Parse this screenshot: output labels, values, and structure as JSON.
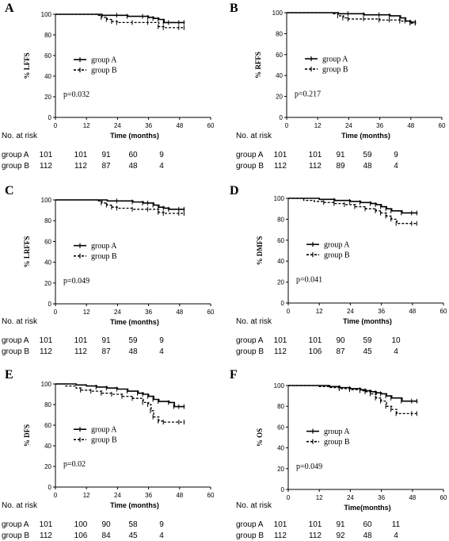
{
  "chart_data": [
    {
      "type": "line",
      "panel_label": "A",
      "ylabel": "% LFFS",
      "xlabel": "Time (months)",
      "xlim": [
        0,
        60
      ],
      "ylim": [
        0,
        100
      ],
      "xticks": [
        "0",
        "12",
        "24",
        "36",
        "48",
        "60"
      ],
      "yticks": [
        "0",
        "20",
        "40",
        "60",
        "80",
        "100"
      ],
      "legend_position": "middle-left",
      "series": [
        {
          "name": "group A",
          "style": "solid",
          "x": [
            0,
            14,
            18,
            24,
            28,
            34,
            36,
            38,
            40,
            42,
            44,
            48,
            50
          ],
          "y": [
            100,
            100,
            99,
            99,
            98,
            98,
            97,
            96,
            95,
            92,
            92,
            92,
            92
          ]
        },
        {
          "name": "group B",
          "style": "dashed",
          "x": [
            0,
            12,
            16,
            18,
            20,
            22,
            24,
            30,
            36,
            40,
            42,
            48,
            50
          ],
          "y": [
            100,
            100,
            99,
            97,
            95,
            93,
            92,
            92,
            92,
            88,
            87,
            87,
            87
          ]
        }
      ],
      "p_value": "p=0.032",
      "risk_table": {
        "header": "No. at risk",
        "rows": [
          {
            "label": "group A",
            "values": [
              "101",
              "101",
              "91",
              "60",
              "9"
            ]
          },
          {
            "label": "group B",
            "values": [
              "112",
              "112",
              "87",
              "48",
              "4"
            ]
          }
        ]
      }
    },
    {
      "type": "line",
      "panel_label": "B",
      "ylabel": "% RFFS",
      "xlabel": "Time (months)",
      "xlim": [
        0,
        60
      ],
      "ylim": [
        0,
        100
      ],
      "xticks": [
        "0",
        "12",
        "24",
        "36",
        "48",
        "60"
      ],
      "yticks": [
        "0",
        "20",
        "40",
        "60",
        "80",
        "100"
      ],
      "legend_position": "middle-left",
      "series": [
        {
          "name": "group A",
          "style": "solid",
          "x": [
            0,
            14,
            20,
            24,
            30,
            36,
            40,
            44,
            46,
            48,
            50
          ],
          "y": [
            100,
            100,
            99,
            99,
            98,
            98,
            97,
            95,
            92,
            91,
            91
          ]
        },
        {
          "name": "group B",
          "style": "dashed",
          "x": [
            0,
            12,
            18,
            20,
            22,
            24,
            30,
            36,
            40,
            44,
            48,
            50
          ],
          "y": [
            100,
            100,
            99,
            97,
            95,
            94,
            94,
            93,
            93,
            92,
            90,
            90
          ]
        }
      ],
      "p_value": "p=0.217",
      "risk_table": {
        "header": "No. at risk",
        "rows": [
          {
            "label": "group A",
            "values": [
              "101",
              "101",
              "91",
              "59",
              "9"
            ]
          },
          {
            "label": "group B",
            "values": [
              "112",
              "112",
              "89",
              "48",
              "4"
            ]
          }
        ]
      }
    },
    {
      "type": "line",
      "panel_label": "C",
      "ylabel": "% LRFFS",
      "xlabel": "Time (months)",
      "xlim": [
        0,
        60
      ],
      "ylim": [
        0,
        100
      ],
      "xticks": [
        "0",
        "12",
        "24",
        "36",
        "48",
        "60"
      ],
      "yticks": [
        "0",
        "20",
        "40",
        "60",
        "80",
        "100"
      ],
      "legend_position": "middle-left",
      "series": [
        {
          "name": "group A",
          "style": "solid",
          "x": [
            0,
            14,
            20,
            24,
            30,
            34,
            36,
            38,
            40,
            42,
            44,
            48,
            50
          ],
          "y": [
            100,
            100,
            99,
            99,
            98,
            97,
            97,
            95,
            93,
            92,
            91,
            91,
            91
          ]
        },
        {
          "name": "group B",
          "style": "dashed",
          "x": [
            0,
            12,
            16,
            18,
            20,
            22,
            24,
            30,
            36,
            40,
            42,
            48,
            50
          ],
          "y": [
            100,
            100,
            99,
            97,
            95,
            93,
            92,
            91,
            91,
            88,
            87,
            87,
            87
          ]
        }
      ],
      "p_value": "p=0.049",
      "risk_table": {
        "header": "No. at risk",
        "rows": [
          {
            "label": "group A",
            "values": [
              "101",
              "101",
              "91",
              "59",
              "9"
            ]
          },
          {
            "label": "group B",
            "values": [
              "112",
              "112",
              "87",
              "48",
              "4"
            ]
          }
        ]
      }
    },
    {
      "type": "line",
      "panel_label": "D",
      "ylabel": "% DMFS",
      "xlabel": "Time (months)",
      "xlim": [
        0,
        60
      ],
      "ylim": [
        0,
        100
      ],
      "xticks": [
        "0",
        "12",
        "24",
        "36",
        "48",
        "60"
      ],
      "yticks": [
        "0",
        "20",
        "40",
        "60",
        "80",
        "100"
      ],
      "legend_position": "middle-left",
      "series": [
        {
          "name": "group A",
          "style": "solid",
          "x": [
            0,
            8,
            12,
            18,
            24,
            28,
            32,
            34,
            36,
            38,
            40,
            44,
            48,
            50
          ],
          "y": [
            100,
            100,
            99,
            98,
            97,
            96,
            95,
            94,
            92,
            90,
            88,
            86,
            86,
            86
          ]
        },
        {
          "name": "group B",
          "style": "dashed",
          "x": [
            0,
            6,
            10,
            14,
            18,
            22,
            26,
            30,
            34,
            36,
            38,
            40,
            42,
            48,
            50
          ],
          "y": [
            100,
            98,
            97,
            96,
            95,
            94,
            92,
            90,
            88,
            86,
            83,
            80,
            76,
            76,
            76
          ]
        }
      ],
      "p_value": "p=0.041",
      "risk_table": {
        "header": "No. at risk",
        "rows": [
          {
            "label": "group A",
            "values": [
              "101",
              "101",
              "90",
              "59",
              "10"
            ]
          },
          {
            "label": "group B",
            "values": [
              "112",
              "106",
              "87",
              "45",
              "4"
            ]
          }
        ]
      }
    },
    {
      "type": "line",
      "panel_label": "E",
      "ylabel": "% DFS",
      "xlabel": "Time (months)",
      "xlim": [
        0,
        60
      ],
      "ylim": [
        0,
        100
      ],
      "xticks": [
        "0",
        "12",
        "24",
        "36",
        "48",
        "60"
      ],
      "yticks": [
        "0",
        "20",
        "40",
        "60",
        "80",
        "100"
      ],
      "legend_position": "middle-left",
      "series": [
        {
          "name": "group A",
          "style": "solid",
          "x": [
            0,
            8,
            12,
            16,
            20,
            24,
            28,
            32,
            34,
            36,
            38,
            40,
            44,
            46,
            48,
            50
          ],
          "y": [
            100,
            99,
            98,
            97,
            96,
            95,
            93,
            91,
            90,
            88,
            85,
            83,
            82,
            78,
            78,
            78
          ]
        },
        {
          "name": "group B",
          "style": "dashed",
          "x": [
            0,
            4,
            8,
            10,
            14,
            18,
            22,
            26,
            30,
            34,
            36,
            37,
            38,
            40,
            42,
            48,
            50
          ],
          "y": [
            100,
            98,
            96,
            94,
            93,
            91,
            90,
            88,
            86,
            82,
            80,
            74,
            68,
            64,
            63,
            63,
            63
          ]
        }
      ],
      "p_value": "p=0.02",
      "risk_table": {
        "header": "No. at risk",
        "rows": [
          {
            "label": "group A",
            "values": [
              "101",
              "100",
              "90",
              "58",
              "9"
            ]
          },
          {
            "label": "group B",
            "values": [
              "112",
              "106",
              "84",
              "45",
              "4"
            ]
          }
        ]
      }
    },
    {
      "type": "line",
      "panel_label": "F",
      "ylabel": "% OS",
      "xlabel": "Time(months)",
      "xlim": [
        0,
        60
      ],
      "ylim": [
        0,
        100
      ],
      "xticks": [
        "0",
        "12",
        "24",
        "36",
        "48",
        "60"
      ],
      "yticks": [
        "0",
        "20",
        "40",
        "60",
        "80",
        "100"
      ],
      "legend_position": "middle-left",
      "series": [
        {
          "name": "group A",
          "style": "solid",
          "x": [
            0,
            12,
            16,
            20,
            24,
            28,
            30,
            32,
            34,
            36,
            38,
            40,
            44,
            48,
            50
          ],
          "y": [
            100,
            100,
            99,
            98,
            97,
            96,
            95,
            94,
            93,
            92,
            90,
            88,
            85,
            85,
            85
          ]
        },
        {
          "name": "group B",
          "style": "dashed",
          "x": [
            0,
            12,
            16,
            20,
            24,
            28,
            30,
            32,
            34,
            36,
            38,
            40,
            42,
            48,
            50
          ],
          "y": [
            100,
            99,
            98,
            97,
            96,
            95,
            94,
            92,
            88,
            85,
            80,
            77,
            73,
            73,
            73
          ]
        }
      ],
      "p_value": "p=0.049",
      "risk_table": {
        "header": "No. at risk",
        "rows": [
          {
            "label": "group A",
            "values": [
              "101",
              "101",
              "91",
              "60",
              "11"
            ]
          },
          {
            "label": "group B",
            "values": [
              "112",
              "112",
              "92",
              "48",
              "4"
            ]
          }
        ]
      }
    }
  ]
}
